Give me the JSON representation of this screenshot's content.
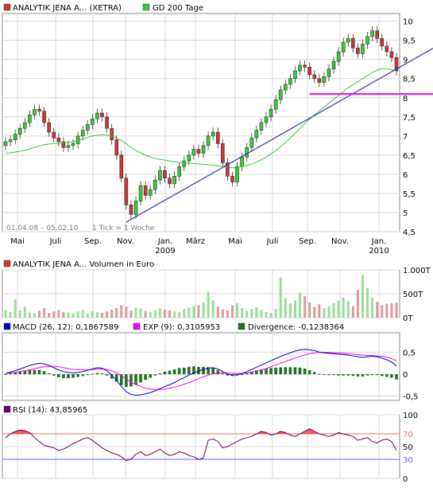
{
  "colors": {
    "panel_bg": "#ffffff",
    "grid": "#d9d9d9",
    "border": "#8c8c8c",
    "candle_up": "#33cc33",
    "candle_down": "#cc3333",
    "sma200": "#33cc33",
    "trendline": "#3333aa",
    "support": "#ff00ff",
    "volume_up": "#99dd99",
    "volume_down": "#dd9999",
    "macd": "#0000cc",
    "exp": "#ff00ff",
    "divergence": "#1f6f1f",
    "rsi": "#660066",
    "rsi_fill": "#ff5555",
    "rsi70": "#ff6666",
    "rsi30": "#6666ff"
  },
  "chart_data": [
    {
      "type": "candlestick",
      "panel": "price",
      "legend": [
        {
          "name": "ANALYTIK JENA A... (XETRA)",
          "color": "#cc3333"
        },
        {
          "name": "GD 200 Tage",
          "color": "#33cc33"
        }
      ],
      "date_range_label": "01.04.08 – 05.02.10",
      "tick_label": "1 Tick = 1 Woche",
      "x_labels": [
        "Mai",
        "Juli",
        "Sep.",
        "Nov.",
        "Jan.",
        "März",
        "Mai",
        "Juli",
        "Sep.",
        "Nov.",
        "Jan."
      ],
      "x_year_labels": [
        {
          "after": "Jan.",
          "index": 4,
          "label": "2009"
        },
        {
          "index": 10,
          "label": "2010"
        }
      ],
      "y_ticks": [
        4.5,
        5,
        5.5,
        6,
        6.5,
        7,
        7.5,
        8,
        8.5,
        9,
        9.5,
        10
      ],
      "ylim": [
        4.5,
        10.2
      ],
      "closes": [
        6.85,
        6.9,
        7.05,
        7.2,
        7.35,
        7.55,
        7.7,
        7.65,
        7.35,
        7.1,
        6.95,
        6.85,
        6.7,
        6.75,
        6.8,
        7.0,
        7.15,
        7.3,
        7.45,
        7.6,
        7.5,
        7.2,
        6.9,
        6.5,
        5.9,
        5.2,
        4.95,
        5.3,
        5.7,
        5.45,
        5.6,
        5.85,
        6.1,
        5.9,
        5.75,
        5.95,
        6.2,
        6.35,
        6.5,
        6.65,
        6.55,
        6.75,
        7.0,
        7.1,
        6.8,
        6.3,
        5.95,
        5.8,
        6.2,
        6.45,
        6.7,
        6.95,
        7.15,
        7.35,
        7.5,
        7.7,
        7.95,
        8.2,
        8.35,
        8.5,
        8.7,
        8.85,
        8.8,
        8.6,
        8.5,
        8.4,
        8.55,
        8.75,
        8.95,
        9.2,
        9.45,
        9.55,
        9.3,
        9.15,
        9.4,
        9.6,
        9.75,
        9.55,
        9.35,
        9.2,
        9.05,
        8.7
      ],
      "sma200": [
        6.55,
        6.56,
        6.58,
        6.6,
        6.63,
        6.66,
        6.7,
        6.74,
        6.77,
        6.79,
        6.8,
        6.81,
        6.82,
        6.83,
        6.85,
        6.88,
        6.92,
        6.96,
        7.0,
        7.02,
        7.03,
        7.02,
        6.99,
        6.95,
        6.88,
        6.8,
        6.7,
        6.62,
        6.56,
        6.5,
        6.45,
        6.41,
        6.39,
        6.37,
        6.35,
        6.33,
        6.31,
        6.3,
        6.29,
        6.28,
        6.27,
        6.26,
        6.25,
        6.24,
        6.22,
        6.2,
        6.18,
        6.17,
        6.18,
        6.2,
        6.23,
        6.27,
        6.32,
        6.38,
        6.45,
        6.53,
        6.62,
        6.72,
        6.83,
        6.95,
        7.07,
        7.2,
        7.32,
        7.44,
        7.55,
        7.66,
        7.76,
        7.86,
        7.96,
        8.06,
        8.16,
        8.26,
        8.34,
        8.42,
        8.5,
        8.58,
        8.66,
        8.72,
        8.76,
        8.76,
        8.74,
        8.7
      ],
      "trendline": {
        "from_week": 25,
        "from_value": 4.75,
        "to_week": 81,
        "to_value": 8.75
      },
      "support_line": {
        "from_week": 63,
        "value": 8.1
      }
    },
    {
      "type": "bar",
      "panel": "volume",
      "legend": [
        {
          "name": "ANALYTIK JENA A... Volumen in Euro",
          "color": "#cc3333"
        }
      ],
      "y_tick_labels": [
        "1.000T",
        "500T",
        "0T"
      ],
      "ylim": [
        0,
        1000
      ],
      "values": [
        160,
        120,
        380,
        150,
        230,
        110,
        90,
        140,
        200,
        100,
        130,
        160,
        120,
        110,
        90,
        130,
        160,
        90,
        140,
        110,
        100,
        130,
        170,
        200,
        260,
        230,
        150,
        210,
        190,
        140,
        120,
        160,
        200,
        170,
        150,
        130,
        120,
        180,
        210,
        240,
        260,
        320,
        540,
        360,
        230,
        170,
        150,
        260,
        300,
        200,
        140,
        180,
        220,
        160,
        120,
        100,
        180,
        840,
        410,
        300,
        360,
        520,
        450,
        320,
        220,
        280,
        200,
        240,
        300,
        360,
        420,
        340,
        240,
        580,
        890,
        620,
        420,
        330,
        260,
        290,
        300,
        310
      ]
    },
    {
      "type": "line",
      "panel": "macd",
      "legend": [
        {
          "name": "MACD (26, 12): 0,1867589",
          "color": "#0000cc"
        },
        {
          "name": "EXP (9): 0,3105953",
          "color": "#ff00ff"
        },
        {
          "name": "Divergence: -0,1238364",
          "color": "#1f6f1f"
        }
      ],
      "y_ticks": [
        -0.5,
        0,
        0.5
      ],
      "ylim": [
        -0.6,
        0.95
      ],
      "macd": [
        0.02,
        0.05,
        0.08,
        0.12,
        0.16,
        0.2,
        0.23,
        0.25,
        0.24,
        0.2,
        0.15,
        0.1,
        0.06,
        0.04,
        0.03,
        0.04,
        0.06,
        0.09,
        0.12,
        0.15,
        0.14,
        0.08,
        -0.02,
        -0.14,
        -0.28,
        -0.4,
        -0.46,
        -0.48,
        -0.47,
        -0.45,
        -0.42,
        -0.38,
        -0.33,
        -0.28,
        -0.24,
        -0.19,
        -0.13,
        -0.08,
        -0.02,
        0.03,
        0.07,
        0.11,
        0.14,
        0.15,
        0.12,
        0.06,
        0.0,
        -0.02,
        -0.01,
        0.02,
        0.06,
        0.11,
        0.16,
        0.21,
        0.26,
        0.31,
        0.36,
        0.41,
        0.45,
        0.49,
        0.53,
        0.56,
        0.57,
        0.56,
        0.54,
        0.51,
        0.49,
        0.48,
        0.47,
        0.46,
        0.45,
        0.44,
        0.42,
        0.4,
        0.39,
        0.4,
        0.41,
        0.4,
        0.37,
        0.33,
        0.28,
        0.19
      ],
      "exp": [
        0.02,
        0.03,
        0.04,
        0.06,
        0.08,
        0.1,
        0.13,
        0.15,
        0.17,
        0.18,
        0.18,
        0.17,
        0.15,
        0.13,
        0.11,
        0.1,
        0.1,
        0.1,
        0.11,
        0.12,
        0.12,
        0.11,
        0.08,
        0.03,
        -0.03,
        -0.11,
        -0.18,
        -0.24,
        -0.28,
        -0.32,
        -0.34,
        -0.35,
        -0.35,
        -0.34,
        -0.32,
        -0.3,
        -0.27,
        -0.23,
        -0.19,
        -0.15,
        -0.1,
        -0.06,
        -0.02,
        0.01,
        0.03,
        0.04,
        0.03,
        0.02,
        0.02,
        0.02,
        0.03,
        0.05,
        0.07,
        0.1,
        0.13,
        0.17,
        0.21,
        0.25,
        0.29,
        0.33,
        0.37,
        0.41,
        0.44,
        0.47,
        0.49,
        0.5,
        0.5,
        0.5,
        0.49,
        0.49,
        0.48,
        0.47,
        0.46,
        0.45,
        0.44,
        0.43,
        0.43,
        0.42,
        0.41,
        0.39,
        0.36,
        0.31
      ]
    },
    {
      "type": "line",
      "panel": "rsi",
      "legend": [
        {
          "name": "RSI (14): 43,85965",
          "color": "#660066"
        }
      ],
      "y_ticks": [
        0,
        30,
        50,
        70,
        100
      ],
      "y_tick_labels": [
        "0",
        "30",
        "50",
        "70",
        "100"
      ],
      "ylim": [
        0,
        100
      ],
      "upper": 70,
      "lower": 30,
      "values": [
        64,
        70,
        74,
        76,
        75,
        72,
        64,
        58,
        52,
        50,
        48,
        44,
        46,
        50,
        55,
        58,
        62,
        64,
        60,
        54,
        48,
        44,
        40,
        38,
        34,
        28,
        30,
        38,
        42,
        36,
        38,
        42,
        46,
        40,
        36,
        38,
        42,
        40,
        36,
        34,
        30,
        32,
        60,
        62,
        58,
        48,
        50,
        54,
        58,
        62,
        64,
        66,
        70,
        74,
        72,
        68,
        70,
        74,
        72,
        68,
        66,
        70,
        74,
        78,
        74,
        70,
        68,
        66,
        68,
        72,
        70,
        68,
        66,
        60,
        62,
        64,
        58,
        56,
        60,
        62,
        58,
        44
      ]
    }
  ]
}
